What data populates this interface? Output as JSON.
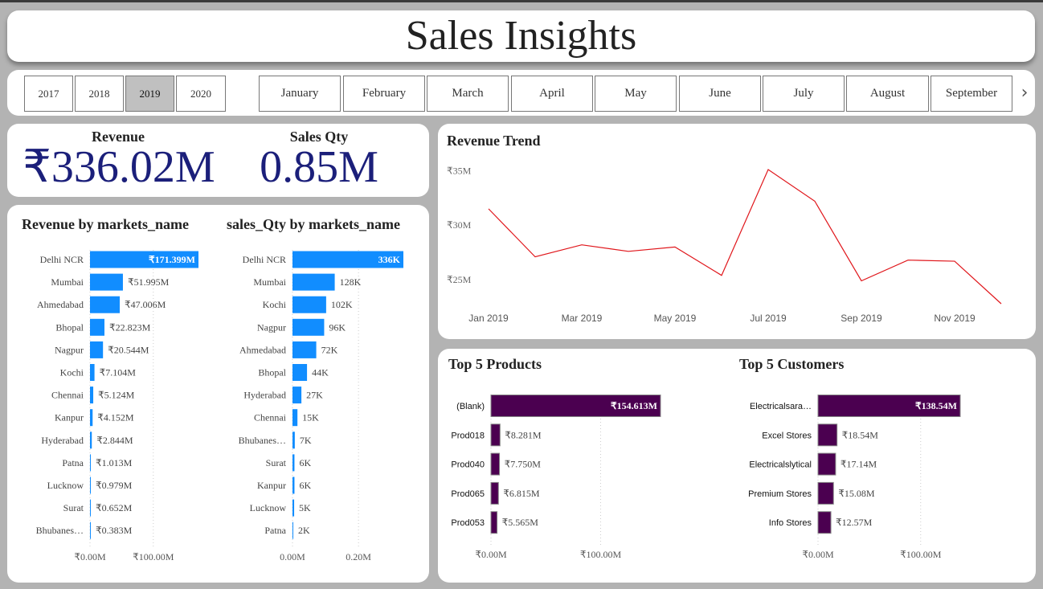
{
  "title": "Sales Insights",
  "slicers": {
    "years": [
      "2017",
      "2018",
      "2019",
      "2020"
    ],
    "selected_year": "2019",
    "months": [
      "January",
      "February",
      "March",
      "April",
      "May",
      "June",
      "July",
      "August",
      "September"
    ]
  },
  "kpis": {
    "revenue_label": "Revenue",
    "revenue_value": "₹336.02M",
    "qty_label": "Sales Qty",
    "qty_value": "0.85M"
  },
  "colors": {
    "market_bar": "#118dff",
    "top_bar": "#4b0050",
    "trend_line": "#e0161b",
    "kpi_text": "#1b1f7a"
  },
  "chart_data": [
    {
      "type": "bar",
      "orientation": "horizontal",
      "title": "Revenue by markets_name",
      "categories": [
        "Delhi NCR",
        "Mumbai",
        "Ahmedabad",
        "Bhopal",
        "Nagpur",
        "Kochi",
        "Chennai",
        "Kanpur",
        "Hyderabad",
        "Patna",
        "Lucknow",
        "Surat",
        "Bhubanes…"
      ],
      "values": [
        171.399,
        51.995,
        47.006,
        22.823,
        20.544,
        7.104,
        5.124,
        4.152,
        2.844,
        1.013,
        0.979,
        0.652,
        0.383
      ],
      "data_labels": [
        "₹171.399M",
        "₹51.995M",
        "₹47.006M",
        "₹22.823M",
        "₹20.544M",
        "₹7.104M",
        "₹5.124M",
        "₹4.152M",
        "₹2.844M",
        "₹1.013M",
        "₹0.979M",
        "₹0.652M",
        "₹0.383M"
      ],
      "xlim": [
        0,
        171.399
      ],
      "x_ticks": [
        0,
        100
      ],
      "x_tick_labels": [
        "₹0.00M",
        "₹100.00M"
      ]
    },
    {
      "type": "bar",
      "orientation": "horizontal",
      "title": "sales_Qty by markets_name",
      "categories": [
        "Delhi NCR",
        "Mumbai",
        "Kochi",
        "Nagpur",
        "Ahmedabad",
        "Bhopal",
        "Hyderabad",
        "Chennai",
        "Bhubanes…",
        "Surat",
        "Kanpur",
        "Lucknow",
        "Patna"
      ],
      "values": [
        336,
        128,
        102,
        96,
        72,
        44,
        27,
        15,
        7,
        6,
        6,
        5,
        2
      ],
      "data_labels": [
        "336K",
        "128K",
        "102K",
        "96K",
        "72K",
        "44K",
        "27K",
        "15K",
        "7K",
        "6K",
        "6K",
        "5K",
        "2K"
      ],
      "xlim": [
        0,
        336
      ],
      "x_ticks": [
        0,
        200
      ],
      "x_tick_labels": [
        "0.00M",
        "0.20M"
      ]
    },
    {
      "type": "line",
      "title": "Revenue Trend",
      "x": [
        "Jan 2019",
        "Feb 2019",
        "Mar 2019",
        "Apr 2019",
        "May 2019",
        "Jun 2019",
        "Jul 2019",
        "Aug 2019",
        "Sep 2019",
        "Oct 2019",
        "Nov 2019",
        "Dec 2019"
      ],
      "values": [
        31.5,
        27.1,
        28.2,
        27.6,
        28.0,
        25.4,
        35.1,
        32.2,
        24.9,
        26.8,
        26.7,
        22.8
      ],
      "ylim": [
        22.8,
        35.1
      ],
      "y_ticks": [
        25,
        30,
        35
      ],
      "y_tick_labels": [
        "₹25M",
        "₹30M",
        "₹35M"
      ],
      "x_tick_labels": [
        "Jan 2019",
        "Mar 2019",
        "May 2019",
        "Jul 2019",
        "Sep 2019",
        "Nov 2019"
      ],
      "x_tick_indices": [
        0,
        2,
        4,
        6,
        8,
        10
      ],
      "grid": false
    },
    {
      "type": "bar",
      "orientation": "horizontal",
      "title": "Top 5 Products",
      "categories": [
        "(Blank)",
        "Prod018",
        "Prod040",
        "Prod065",
        "Prod053"
      ],
      "values": [
        154.613,
        8.281,
        7.75,
        6.815,
        5.565
      ],
      "data_labels": [
        "₹154.613M",
        "₹8.281M",
        "₹7.750M",
        "₹6.815M",
        "₹5.565M"
      ],
      "xlim": [
        0,
        154.613
      ],
      "x_ticks": [
        0,
        100
      ],
      "x_tick_labels": [
        "₹0.00M",
        "₹100.00M"
      ]
    },
    {
      "type": "bar",
      "orientation": "horizontal",
      "title": "Top 5 Customers",
      "categories": [
        "Electricalsara…",
        "Excel Stores",
        "Electricalslytical",
        "Premium Stores",
        "Info Stores"
      ],
      "values": [
        138.54,
        18.54,
        17.14,
        15.08,
        12.57
      ],
      "data_labels": [
        "₹138.54M",
        "₹18.54M",
        "₹17.14M",
        "₹15.08M",
        "₹12.57M"
      ],
      "xlim": [
        0,
        138.54
      ],
      "x_ticks": [
        0,
        100
      ],
      "x_tick_labels": [
        "₹0.00M",
        "₹100.00M"
      ]
    }
  ]
}
